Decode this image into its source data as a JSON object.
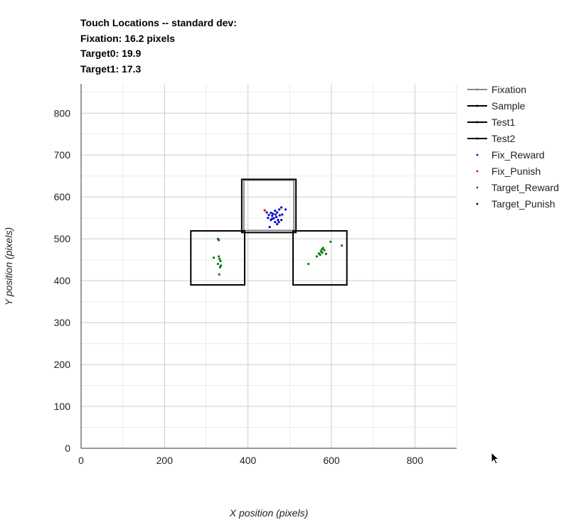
{
  "header": {
    "lines": [
      "Touch Locations -- standard dev:",
      "Fixation: 16.2 pixels",
      "Target0: 19.9",
      "Target1: 17.3"
    ]
  },
  "chart_data": {
    "type": "scatter",
    "title": "Touch Locations -- standard dev:",
    "xlabel": "X position (pixels)",
    "ylabel": "Y position (pixels)",
    "xlim": [
      0,
      900
    ],
    "ylim": [
      0,
      870
    ],
    "xticks": [
      0,
      200,
      400,
      600,
      800
    ],
    "yticks": [
      0,
      100,
      200,
      300,
      400,
      500,
      600,
      700,
      800
    ],
    "grid": true,
    "legend_position": "right",
    "series": [
      {
        "name": "Fixation",
        "kind": "box",
        "color": "#888888",
        "rect": {
          "x": [
            390,
            510
          ],
          "y": [
            520,
            640
          ]
        }
      },
      {
        "name": "Sample",
        "kind": "box",
        "color": "#000000",
        "rect": {
          "x": [
            385,
            515
          ],
          "y": [
            515,
            642
          ]
        }
      },
      {
        "name": "Test1",
        "kind": "box",
        "color": "#000000",
        "rect": {
          "x": [
            263,
            392
          ],
          "y": [
            390,
            519
          ]
        }
      },
      {
        "name": "Test2",
        "kind": "box",
        "color": "#000000",
        "rect": {
          "x": [
            508,
            637
          ],
          "y": [
            390,
            519
          ]
        }
      },
      {
        "name": "Fix_Reward",
        "kind": "points",
        "color": "#0000cc",
        "points": [
          [
            445,
            563
          ],
          [
            450,
            557
          ],
          [
            455,
            562
          ],
          [
            460,
            560
          ],
          [
            465,
            567
          ],
          [
            470,
            563
          ],
          [
            475,
            570
          ],
          [
            480,
            575
          ],
          [
            448,
            550
          ],
          [
            458,
            555
          ],
          [
            462,
            549
          ],
          [
            468,
            552
          ],
          [
            472,
            545
          ],
          [
            476,
            556
          ],
          [
            482,
            558
          ],
          [
            455,
            545
          ],
          [
            465,
            540
          ],
          [
            470,
            535
          ],
          [
            480,
            545
          ],
          [
            490,
            570
          ],
          [
            452,
            528
          ],
          [
            474,
            540
          ],
          [
            458,
            548
          ],
          [
            466,
            558
          ]
        ]
      },
      {
        "name": "Fix_Punish",
        "kind": "points",
        "color": "#dd0000",
        "points": [
          [
            440,
            568
          ]
        ]
      },
      {
        "name": "Target_Reward",
        "kind": "points",
        "color": "#007700",
        "points": [
          [
            328,
            500
          ],
          [
            330,
            497
          ],
          [
            318,
            455
          ],
          [
            330,
            458
          ],
          [
            332,
            452
          ],
          [
            334,
            447
          ],
          [
            328,
            440
          ],
          [
            335,
            436
          ],
          [
            333,
            432
          ],
          [
            331,
            415
          ],
          [
            580,
            478
          ],
          [
            577,
            475
          ],
          [
            575,
            470
          ],
          [
            583,
            473
          ],
          [
            578,
            467
          ],
          [
            570,
            465
          ],
          [
            573,
            462
          ],
          [
            587,
            464
          ],
          [
            565,
            458
          ],
          [
            598,
            493
          ],
          [
            625,
            484
          ],
          [
            545,
            440
          ]
        ]
      },
      {
        "name": "Target_Punish",
        "kind": "points",
        "color": "#000000",
        "points": []
      }
    ]
  }
}
